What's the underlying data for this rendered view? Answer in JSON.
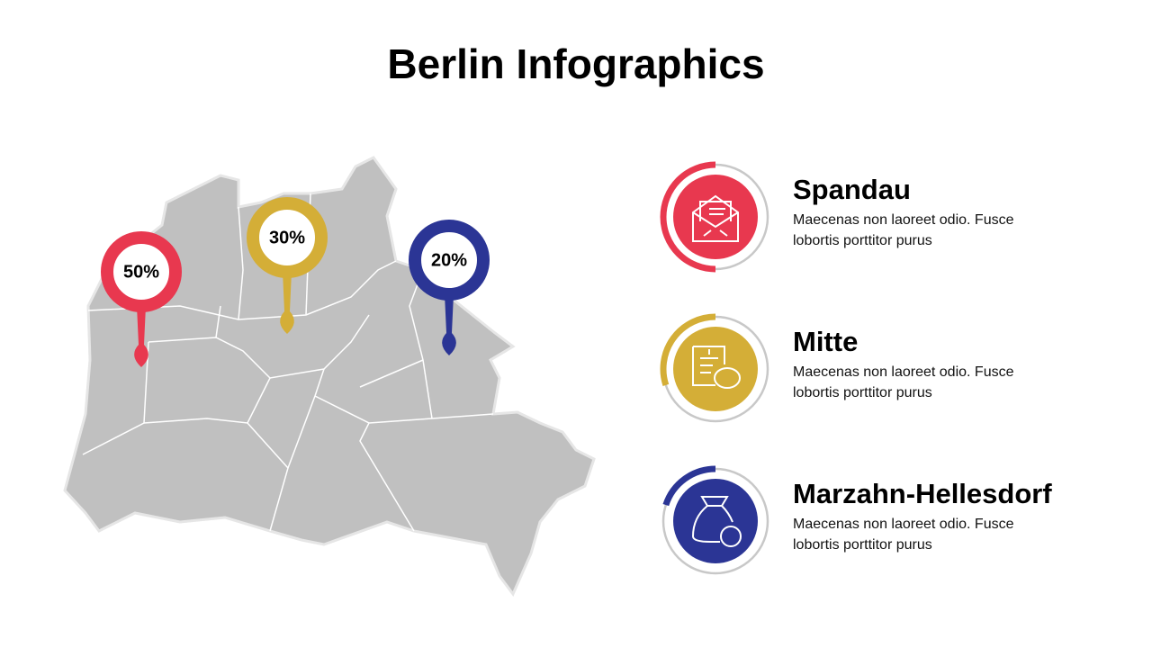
{
  "title": "Berlin Infographics",
  "regions": [
    {
      "name": "Spandau",
      "description": "Maecenas non laoreet odio. Fusce lobortis porttitor purus",
      "value": 50,
      "label": "50%",
      "color": "#e8384f"
    },
    {
      "name": "Mitte",
      "description": "Maecenas non laoreet odio. Fusce lobortis porttitor purus",
      "value": 30,
      "label": "30%",
      "color": "#d4ae37"
    },
    {
      "name": "Marzahn-Hellesdorf",
      "description": "Maecenas non laoreet odio. Fusce lobortis porttitor purus",
      "value": 20,
      "label": "20%",
      "color": "#2b3595"
    }
  ]
}
